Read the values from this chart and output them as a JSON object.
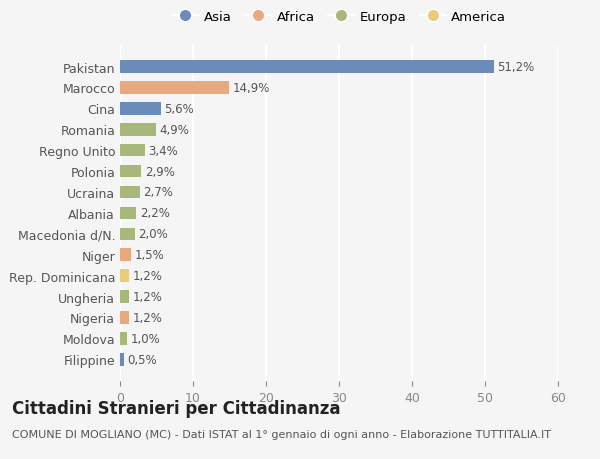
{
  "categories": [
    "Pakistan",
    "Marocco",
    "Cina",
    "Romania",
    "Regno Unito",
    "Polonia",
    "Ucraina",
    "Albania",
    "Macedonia d/N.",
    "Niger",
    "Rep. Dominicana",
    "Ungheria",
    "Nigeria",
    "Moldova",
    "Filippine"
  ],
  "values": [
    51.2,
    14.9,
    5.6,
    4.9,
    3.4,
    2.9,
    2.7,
    2.2,
    2.0,
    1.5,
    1.2,
    1.2,
    1.2,
    1.0,
    0.5
  ],
  "labels": [
    "51,2%",
    "14,9%",
    "5,6%",
    "4,9%",
    "3,4%",
    "2,9%",
    "2,7%",
    "2,2%",
    "2,0%",
    "1,5%",
    "1,2%",
    "1,2%",
    "1,2%",
    "1,0%",
    "0,5%"
  ],
  "continents": [
    "Asia",
    "Africa",
    "Asia",
    "Europa",
    "Europa",
    "Europa",
    "Europa",
    "Europa",
    "Europa",
    "Africa",
    "America",
    "Europa",
    "Africa",
    "Europa",
    "Asia"
  ],
  "continent_colors": {
    "Asia": "#6b8cba",
    "Africa": "#e8a97e",
    "Europa": "#a8b87a",
    "America": "#e8cc7a"
  },
  "legend_order": [
    "Asia",
    "Africa",
    "Europa",
    "America"
  ],
  "title": "Cittadini Stranieri per Cittadinanza",
  "subtitle": "COMUNE DI MOGLIANO (MC) - Dati ISTAT al 1° gennaio di ogni anno - Elaborazione TUTTITALIA.IT",
  "xlim": [
    0,
    60
  ],
  "xticks": [
    0,
    10,
    20,
    30,
    40,
    50,
    60
  ],
  "background_color": "#f5f5f5",
  "grid_color": "#ffffff",
  "label_fontsize": 8.5,
  "tick_fontsize": 9,
  "title_fontsize": 12,
  "subtitle_fontsize": 8
}
